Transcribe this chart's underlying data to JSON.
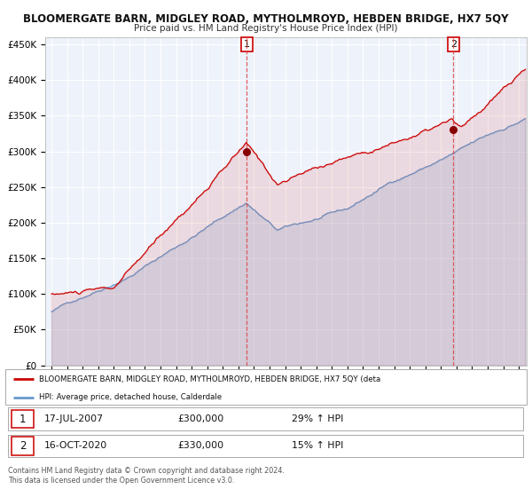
{
  "title": "BLOOMERGATE BARN, MIDGLEY ROAD, MYTHOLMROYD, HEBDEN BRIDGE, HX7 5QY",
  "subtitle": "Price paid vs. HM Land Registry's House Price Index (HPI)",
  "red_label": "BLOOMERGATE BARN, MIDGLEY ROAD, MYTHOLMROYD, HEBDEN BRIDGE, HX7 5QY (deta",
  "blue_label": "HPI: Average price, detached house, Calderdale",
  "marker1_date": "17-JUL-2007",
  "marker1_price": 300000,
  "marker1_pct": "29% ↑ HPI",
  "marker2_date": "16-OCT-2020",
  "marker2_price": 330000,
  "marker2_pct": "15% ↑ HPI",
  "footer1": "Contains HM Land Registry data © Crown copyright and database right 2024.",
  "footer2": "This data is licensed under the Open Government Licence v3.0.",
  "ylim": [
    0,
    460000
  ],
  "yticks": [
    0,
    50000,
    100000,
    150000,
    200000,
    250000,
    300000,
    350000,
    400000,
    450000
  ],
  "ytick_labels": [
    "£0",
    "£50K",
    "£100K",
    "£150K",
    "£200K",
    "£250K",
    "£300K",
    "£350K",
    "£400K",
    "£450K"
  ],
  "red_color": "#cc0000",
  "blue_color": "#6699cc",
  "marker_dot_color": "#880000",
  "vline_color": "#dd4444",
  "bg_color": "#ffffff",
  "plot_bg_color": "#eef2fa",
  "grid_color": "#ffffff",
  "marker1_x": 2007.54,
  "marker2_x": 2020.79,
  "xlim_left": 1994.6,
  "xlim_right": 2025.5
}
